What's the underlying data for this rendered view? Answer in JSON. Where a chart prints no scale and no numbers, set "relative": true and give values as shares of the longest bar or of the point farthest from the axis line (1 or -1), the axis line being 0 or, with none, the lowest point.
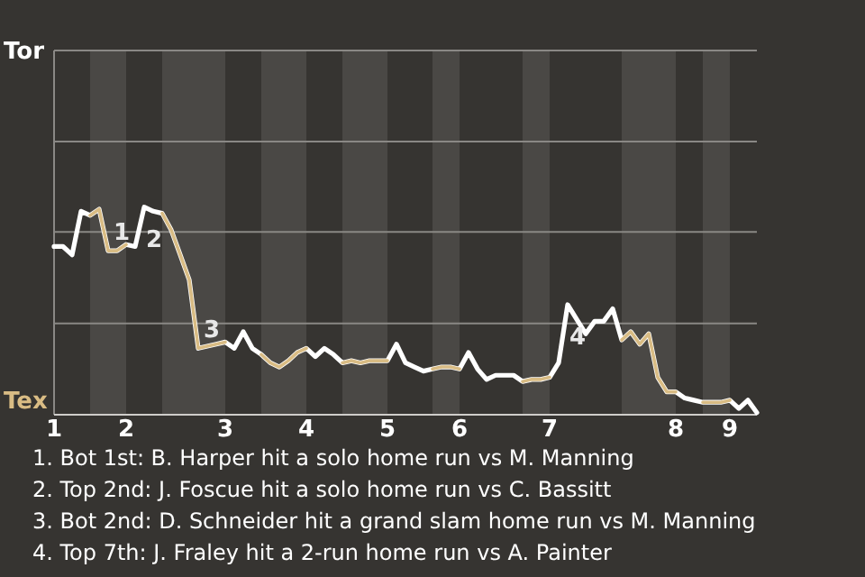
{
  "chart_data": {
    "type": "line",
    "relative": true,
    "ref_lines": [
      {
        "axis": "y",
        "value": 0.44,
        "color": "#8a8885"
      },
      {
        "axis": "y",
        "value": 0.88,
        "color": "#8a8885"
      }
    ],
    "marker": "none",
    "line_style": "solid",
    "categories": [
      "1",
      null,
      null,
      null,
      null,
      null,
      null,
      null,
      "2",
      null,
      null,
      null,
      null,
      null,
      null,
      null,
      null,
      null,
      null,
      "3",
      null,
      null,
      null,
      null,
      null,
      null,
      null,
      null,
      "4",
      null,
      null,
      null,
      null,
      null,
      null,
      null,
      null,
      "5",
      null,
      null,
      null,
      null,
      null,
      null,
      null,
      "6",
      null,
      null,
      null,
      null,
      null,
      null,
      null,
      null,
      null,
      "7",
      null,
      null,
      null,
      null,
      null,
      null,
      null,
      null,
      null,
      null,
      null,
      null,
      null,
      "8",
      null,
      null,
      null,
      null,
      null,
      "9",
      null,
      null,
      null
    ],
    "series": [
      {
        "color": "#ffffff",
        "values": [
          0.81,
          0.81,
          0.77,
          0.98,
          0.96,
          0.99,
          0.79,
          0.79,
          0.82,
          0.81,
          1,
          0.98,
          0.97,
          0.89,
          0.77,
          0.65,
          0.32,
          0.33,
          0.34,
          0.35,
          0.32,
          0.4,
          0.32,
          0.29,
          0.25,
          0.23,
          0.26,
          0.3,
          0.32,
          0.28,
          0.32,
          0.29,
          0.25,
          0.26,
          0.25,
          0.26,
          0.26,
          0.26,
          0.34,
          0.25,
          0.23,
          0.21,
          0.22,
          0.23,
          0.23,
          0.22,
          0.3,
          0.22,
          0.17,
          0.19,
          0.19,
          0.19,
          0.16,
          0.17,
          0.17,
          0.18,
          0.25,
          0.53,
          0.46,
          0.39,
          0.45,
          0.45,
          0.51,
          0.36,
          0.4,
          0.34,
          0.39,
          0.18,
          0.11,
          0.11,
          0.08,
          0.07,
          0.06,
          0.06,
          0.06,
          0.07,
          0.03,
          0.07,
          0.01
        ]
      },
      {
        "color": "#d9bc84",
        "values": [
          null,
          null,
          null,
          null,
          0.96,
          0.99,
          0.79,
          0.79,
          0.82,
          null,
          null,
          null,
          0.97,
          0.89,
          0.77,
          0.65,
          0.32,
          0.33,
          0.34,
          0.35,
          null,
          null,
          null,
          0.29,
          0.25,
          0.23,
          0.26,
          0.3,
          0.32,
          null,
          null,
          null,
          0.25,
          0.26,
          0.25,
          0.26,
          0.26,
          0.26,
          null,
          null,
          null,
          null,
          0.22,
          0.23,
          0.23,
          0.22,
          null,
          null,
          null,
          null,
          null,
          null,
          0.16,
          0.17,
          0.17,
          0.18,
          null,
          null,
          null,
          null,
          null,
          null,
          null,
          0.36,
          0.4,
          0.34,
          0.39,
          0.18,
          0.11,
          0.11,
          null,
          null,
          0.06,
          0.06,
          0.06,
          0.07,
          null,
          null,
          null
        ]
      }
    ],
    "annotations": [
      "Tor",
      "Tex",
      {
        "text": "1",
        "y": 0.79
      },
      {
        "text": "2",
        "y": 1
      },
      {
        "text": "3",
        "y": 0.32
      },
      {
        "text": "4",
        "y": 0.53
      },
      "1. Bot 1st: B. Harper hit a solo home run vs M. Manning",
      "2. Top 2nd: J. Foscue hit a solo home run vs C. Bassitt",
      "3. Bot 2nd: D. Schneider hit a grand slam home run vs M. Manning",
      "4. Top 7th: J. Fraley hit a 2-run home run vs A. Painter"
    ]
  }
}
